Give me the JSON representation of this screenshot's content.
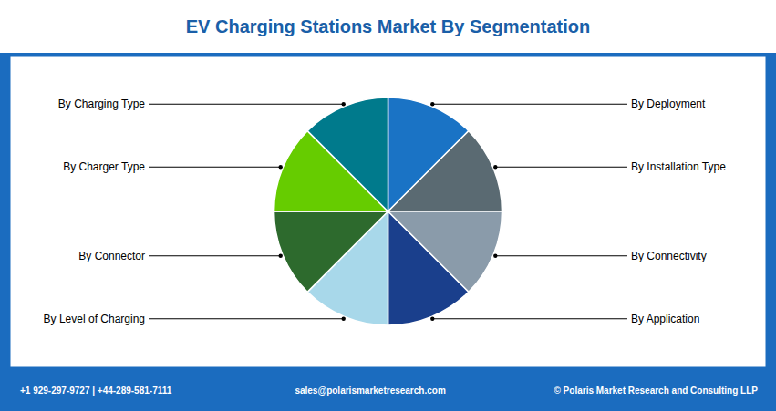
{
  "chart_data": {
    "type": "pie",
    "title": "EV Charging Stations Market By Segmentation",
    "categories": [
      "By Deployment",
      "By Installation Type",
      "By Connectivity",
      "By Application",
      "By Level of Charging",
      "By Connector",
      "By Charger Type",
      "By Charging Type"
    ],
    "values": [
      1,
      1,
      1,
      1,
      1,
      1,
      1,
      1
    ],
    "colors": [
      "#1a73c5",
      "#5a6a72",
      "#8a9baa",
      "#1a3f8c",
      "#a8d8ea",
      "#2d6a2d",
      "#66cc00",
      "#007a8c"
    ],
    "annotations": [
      "+1 929-297-9727 | +44-289-581-7111",
      "sales@polarismarketresearch.com",
      "© Polaris Market Research and Consulting LLP"
    ]
  }
}
